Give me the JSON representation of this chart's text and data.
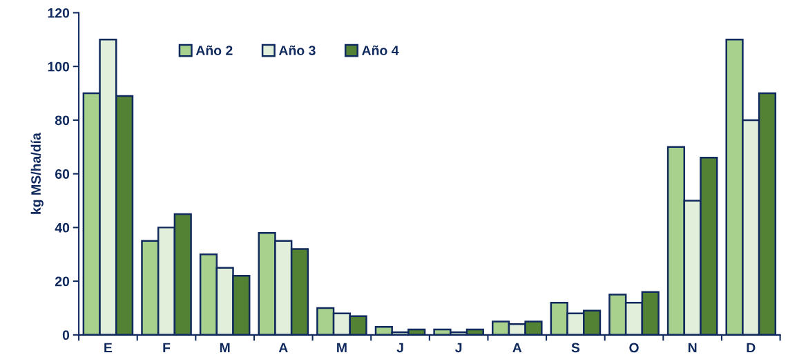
{
  "chart_data": {
    "type": "bar",
    "ylabel": "kg MS/ha/día",
    "categories": [
      "E",
      "F",
      "M",
      "A",
      "M",
      "J",
      "J",
      "A",
      "S",
      "O",
      "N",
      "D"
    ],
    "series": [
      {
        "name": "Año 2",
        "color": "#a9d18e",
        "values": [
          90,
          35,
          30,
          38,
          10,
          3,
          2,
          5,
          12,
          15,
          70,
          110
        ]
      },
      {
        "name": "Año 3",
        "color": "#e2efda",
        "values": [
          110,
          40,
          25,
          35,
          8,
          1,
          1,
          4,
          8,
          12,
          50,
          80
        ]
      },
      {
        "name": "Año 4",
        "color": "#548235",
        "values": [
          89,
          45,
          22,
          32,
          7,
          2,
          2,
          5,
          9,
          16,
          66,
          90
        ]
      }
    ],
    "ylim": [
      0,
      120
    ],
    "yticks": [
      0,
      20,
      40,
      60,
      80,
      100,
      120
    ],
    "grid": false,
    "legend": "top"
  }
}
